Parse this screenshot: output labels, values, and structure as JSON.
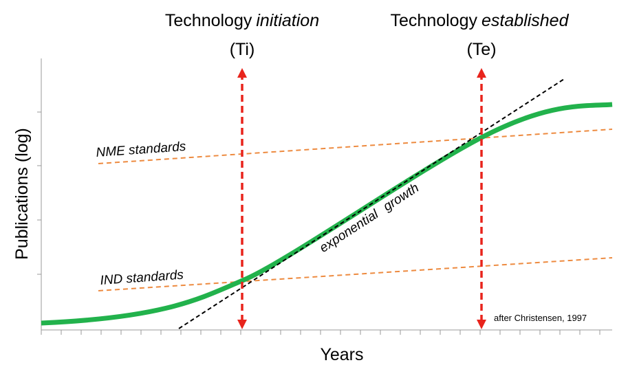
{
  "axes": {
    "y_label": "Publications (log)",
    "x_label": "Years"
  },
  "milestones": [
    {
      "prefix": "Technology",
      "emphasis": "initiation",
      "abbr": "(Ti)"
    },
    {
      "prefix": "Technology",
      "emphasis": "established",
      "abbr": "(Te)"
    }
  ],
  "lines": {
    "nme": "NME standards",
    "ind": "IND standards",
    "growth": "exponential growth"
  },
  "source": "after Christensen, 1997"
}
